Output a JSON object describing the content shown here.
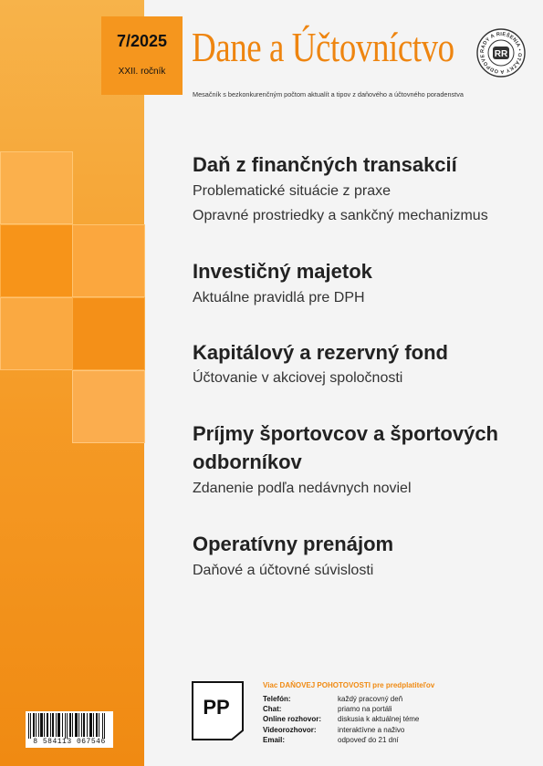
{
  "issue": {
    "number": "7/2025",
    "volume": "XXII. ročník"
  },
  "magazine": {
    "title": "Dane a Účtovníctvo",
    "subtitle": "Mesačník s bezkonkurenčným počtom aktualít a tipov z daňového a účtovného poradenstva",
    "seal_text": "RADY A RIEŠENIA • OTÁZKY A ODPOVEDE •",
    "seal_center": "RR"
  },
  "articles": [
    {
      "title": "Daň z finančných transakcií",
      "subs": [
        "Problematické situácie z praxe",
        "Opravné prostriedky a sankčný mechanizmus"
      ]
    },
    {
      "title": "Investičný majetok",
      "subs": [
        "Aktuálne pravidlá pre DPH"
      ]
    },
    {
      "title": "Kapitálový a rezervný fond",
      "subs": [
        "Účtovanie v akciovej spoločnosti"
      ]
    },
    {
      "title_lines": [
        "Príjmy športovcov a športových",
        "odborníkov"
      ],
      "subs": [
        "Zdanenie podľa nedávnych noviel"
      ]
    },
    {
      "title": "Operatívny prenájom",
      "subs": [
        "Daňové a účtovné súvislosti"
      ]
    }
  ],
  "promo": {
    "logo": "PP",
    "heading": "Viac DAŇOVEJ POHOTOVOSTI pre predplatiteľov",
    "rows": [
      {
        "key": "Telefón:",
        "value": "každý pracovný deň"
      },
      {
        "key": "Chat:",
        "value": "priamo na portáli"
      },
      {
        "key": "Online rozhovor:",
        "value": "diskusia k aktuálnej téme"
      },
      {
        "key": "Videorozhovor:",
        "value": "interaktívne a naživo"
      },
      {
        "key": "Email:",
        "value": "odpoveď do 21 dní"
      }
    ]
  },
  "barcode": "8 584113 067546",
  "colors": {
    "accent": "#f08a12",
    "strip_top": "#f7b34a",
    "strip_bottom": "#f08a12"
  }
}
